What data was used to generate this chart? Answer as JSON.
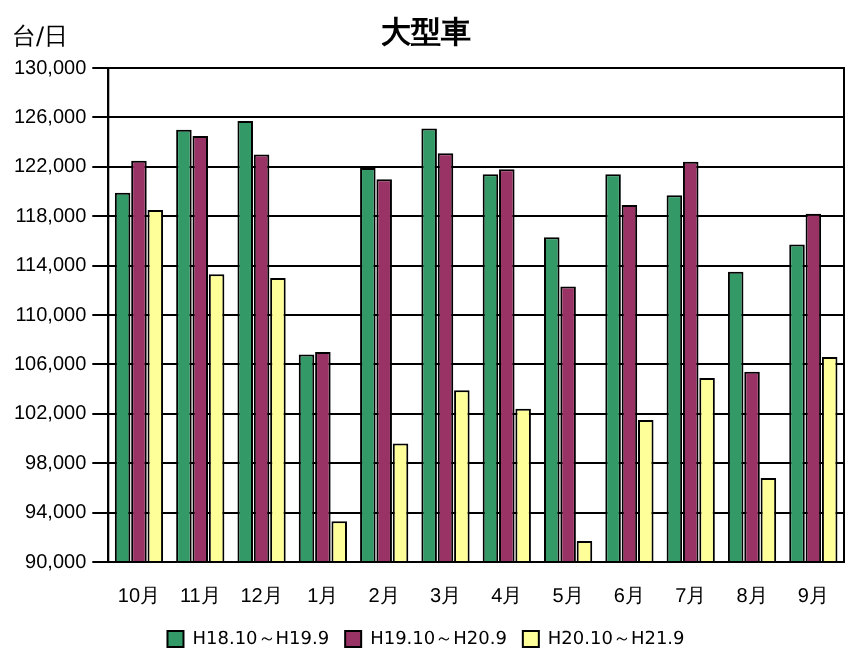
{
  "chart_data": {
    "type": "bar",
    "title": "大型車",
    "ylabel": "台/日",
    "categories": [
      "10月",
      "11月",
      "12月",
      "1月",
      "2月",
      "3月",
      "4月",
      "5月",
      "6月",
      "7月",
      "8月",
      "9月"
    ],
    "series": [
      {
        "name": "H18.10～H19.9",
        "color": "#339966",
        "values": [
          119900,
          125000,
          125700,
          106800,
          121900,
          125100,
          121400,
          116300,
          121400,
          119700,
          113500,
          115700
        ]
      },
      {
        "name": "H19.10～H20.9",
        "color": "#993366",
        "values": [
          122500,
          124500,
          123000,
          107000,
          121000,
          123100,
          121800,
          112300,
          118900,
          122400,
          105400,
          118200
        ]
      },
      {
        "name": "H20.10～H21.9",
        "color": "#ffff99",
        "values": [
          118500,
          113300,
          113000,
          93300,
          99600,
          103900,
          102400,
          91700,
          101500,
          104900,
          96800,
          106600
        ]
      }
    ],
    "ylim": [
      90000,
      130000
    ],
    "yticks": [
      {
        "value": 90000,
        "label": "90,000"
      },
      {
        "value": 94000,
        "label": "94,000"
      },
      {
        "value": 98000,
        "label": "98,000"
      },
      {
        "value": 102000,
        "label": "102,000"
      },
      {
        "value": 106000,
        "label": "106,000"
      },
      {
        "value": 110000,
        "label": "110,000"
      },
      {
        "value": 114000,
        "label": "114,000"
      },
      {
        "value": 118000,
        "label": "118,000"
      },
      {
        "value": 122000,
        "label": "122,000"
      },
      {
        "value": 126000,
        "label": "126,000"
      },
      {
        "value": 130000,
        "label": "130,000"
      }
    ],
    "grid": "y",
    "legend": "bottom"
  }
}
